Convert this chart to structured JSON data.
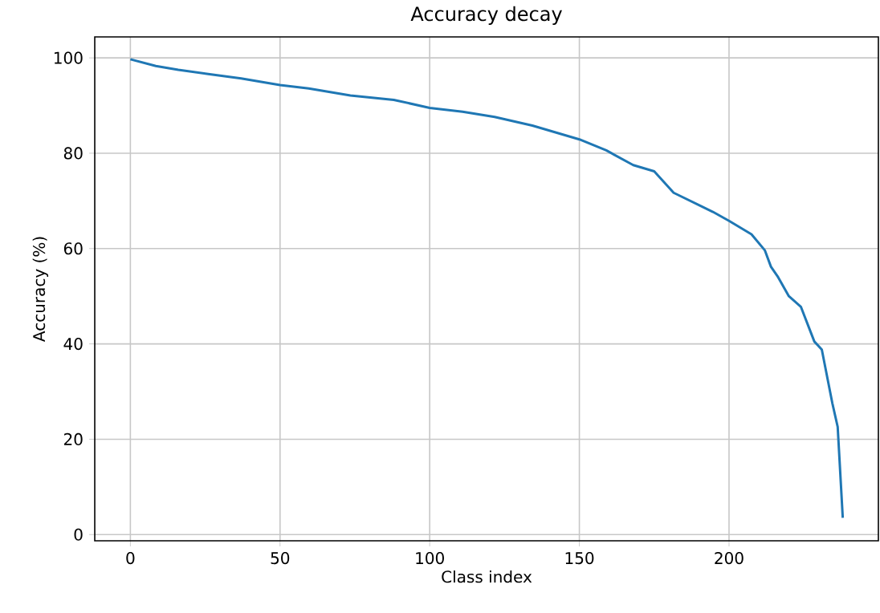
{
  "chart_data": {
    "type": "line",
    "title": "Accuracy decay",
    "xlabel": "Class index",
    "ylabel": "Accuracy (%)",
    "x": [
      0,
      8.5,
      16,
      26,
      37,
      50,
      59.6,
      73.5,
      88,
      100,
      111,
      121.7,
      134.3,
      150,
      159,
      168,
      175,
      181.5,
      194.6,
      200,
      207.5,
      212,
      214,
      216.4,
      220,
      224,
      228.5,
      231,
      234.5,
      236.3,
      238
    ],
    "series": [
      {
        "color": "#1f77b4",
        "values": [
          99.7,
          98.3,
          97.5,
          96.6,
          95.7,
          94.3,
          93.6,
          92.1,
          91.2,
          89.5,
          88.7,
          87.6,
          85.8,
          82.9,
          80.6,
          77.5,
          76.2,
          71.7,
          67.7,
          65.8,
          63,
          59.6,
          56.2,
          54,
          50,
          47.8,
          40.5,
          38.8,
          27.6,
          22.6,
          3.5
        ]
      }
    ],
    "xlim": [
      -11.9,
      249.9
    ],
    "ylim": [
      -1.3,
      104.4
    ],
    "xticks": [
      0,
      50,
      100,
      150,
      200
    ],
    "yticks": [
      0,
      20,
      40,
      60,
      80,
      100
    ],
    "grid": true,
    "line_style": "solid"
  }
}
